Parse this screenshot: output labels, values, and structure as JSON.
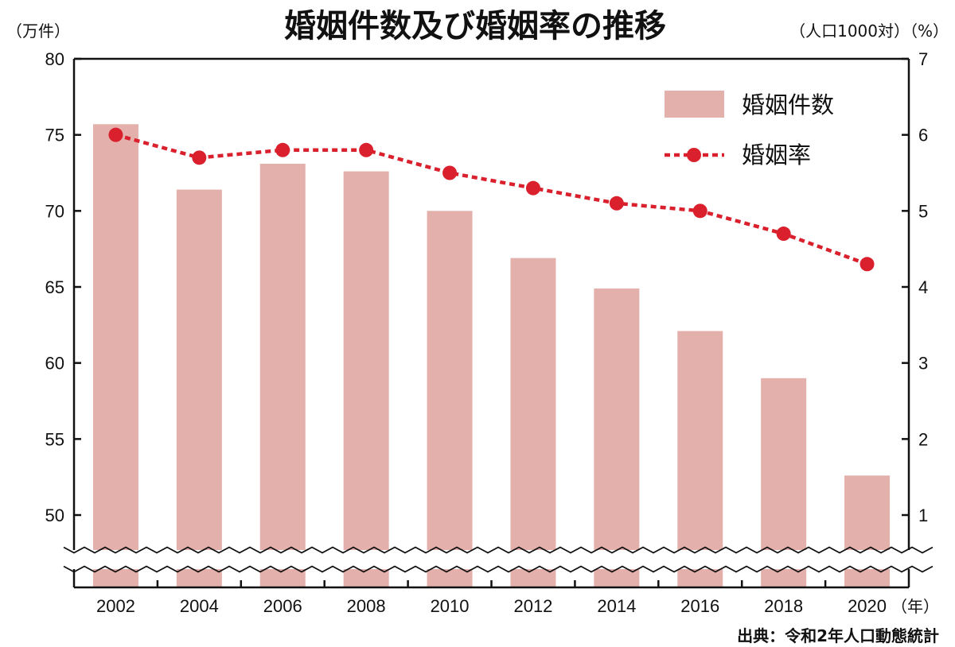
{
  "chart_data": {
    "type": "bar",
    "title": "婚姻件数及び婚姻率の推移",
    "left_axis_unit": "（万件）",
    "right_axis_unit": "（人口1000対）（%）",
    "x_unit": "（年）",
    "source": "出典：令和2年人口動態統計",
    "categories": [
      "2002",
      "2004",
      "2006",
      "2008",
      "2010",
      "2012",
      "2014",
      "2016",
      "2018",
      "2020"
    ],
    "y_ticks": [
      "80",
      "75",
      "70",
      "65",
      "60",
      "55",
      "50"
    ],
    "y2_ticks": [
      "7",
      "6",
      "5",
      "4",
      "3",
      "2",
      "1"
    ],
    "ylim": [
      50,
      80
    ],
    "y2lim": [
      1,
      7
    ],
    "axis_break": true,
    "grid": false,
    "legend_position": "top-right",
    "series": [
      {
        "name": "婚姻件数",
        "type": "bar",
        "axis": "left",
        "color": "#e3b0ab",
        "values": [
          75.7,
          71.4,
          73.1,
          72.6,
          70.0,
          66.9,
          64.9,
          62.1,
          59.0,
          52.6
        ]
      },
      {
        "name": "婚姻率",
        "type": "line",
        "axis": "right",
        "color": "#d9202c",
        "line_style": "dotted",
        "values": [
          6.0,
          5.7,
          5.8,
          5.8,
          5.5,
          5.3,
          5.1,
          5.0,
          4.7,
          4.3
        ]
      }
    ]
  }
}
